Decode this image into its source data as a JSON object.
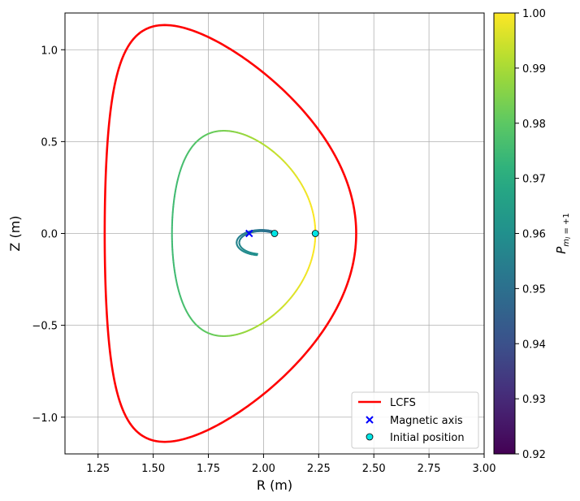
{
  "chart_data": {
    "type": "line",
    "xlabel": "R (m)",
    "ylabel": "Z (m)",
    "xlim": [
      1.1,
      3.0
    ],
    "ylim": [
      -1.2,
      1.2
    ],
    "xticks": [
      1.25,
      1.5,
      1.75,
      2.0,
      2.25,
      2.5,
      2.75,
      3.0
    ],
    "xtick_labels": [
      "1.25",
      "1.50",
      "1.75",
      "2.00",
      "2.25",
      "2.50",
      "2.75",
      "3.00"
    ],
    "yticks": [
      -1.0,
      -0.5,
      0.0,
      0.5,
      1.0
    ],
    "ytick_labels": [
      "−1.0",
      "−0.5",
      "0.0",
      "0.5",
      "1.0"
    ],
    "grid": true,
    "legend_position": "lower-right",
    "series": [
      {
        "name": "LCFS",
        "kind": "line",
        "color": "#ff0000",
        "shape": {
          "R0": 1.85,
          "a": 0.57,
          "kappa": 1.99,
          "delta": 0.55
        }
      },
      {
        "name": "Magnetic axis",
        "kind": "marker-x",
        "color": "#0000ff",
        "points": [
          [
            1.935,
            0.0
          ]
        ]
      },
      {
        "name": "Initial position",
        "kind": "marker-circle",
        "color": "#00e5e5",
        "points": [
          [
            2.05,
            0.0
          ],
          [
            2.235,
            0.0
          ]
        ]
      }
    ],
    "trajectories": [
      {
        "kind": "passing",
        "shape": {
          "R0": 1.91,
          "a": 0.325,
          "kappa": 1.72,
          "delta": 0.28
        },
        "p_min": 0.975,
        "p_max": 1.0
      },
      {
        "kind": "banana",
        "center": [
          1.99,
          -0.05
        ],
        "radius": 0.1,
        "start_angle_deg": 60,
        "end_angle_deg": 260,
        "p_min": 0.95,
        "p_max": 0.96
      }
    ],
    "colorbar": {
      "label": "P_{m_l=+1}",
      "min": 0.92,
      "max": 1.0,
      "ticks": [
        0.92,
        0.93,
        0.94,
        0.95,
        0.96,
        0.97,
        0.98,
        0.99,
        1.0
      ],
      "tick_labels": [
        "0.92",
        "0.93",
        "0.94",
        "0.95",
        "0.96",
        "0.97",
        "0.98",
        "0.99",
        "1.00"
      ],
      "colormap": "viridis"
    }
  }
}
